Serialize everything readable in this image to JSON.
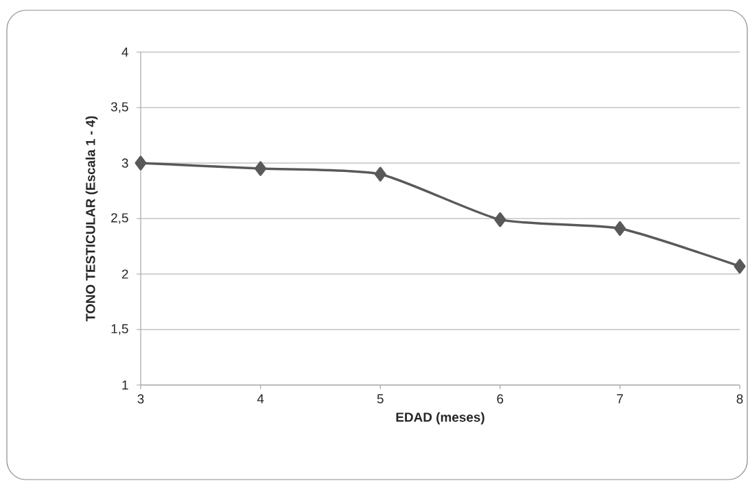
{
  "chart_data": {
    "type": "line",
    "xlabel": "EDAD (meses)",
    "ylabel": "TONO TESTICULAR (Escala 1 - 4)",
    "x": [
      3,
      4,
      5,
      6,
      7,
      8
    ],
    "series": [
      {
        "color": "#595959",
        "values": [
          3.0,
          2.95,
          2.9,
          2.49,
          2.41,
          2.07
        ]
      }
    ],
    "xlim": [
      3,
      8
    ],
    "xticks": [
      3,
      4,
      5,
      6,
      7,
      8
    ],
    "ylim": [
      1,
      4
    ],
    "yticks": [
      1,
      {
        "value": 1.5,
        "label": "1,5"
      },
      2,
      {
        "value": 2.5,
        "label": "2,5"
      },
      3,
      {
        "value": 3.5,
        "label": "3,5"
      },
      4
    ],
    "grid": "y",
    "marker": "diamond",
    "line_style": "solid"
  }
}
